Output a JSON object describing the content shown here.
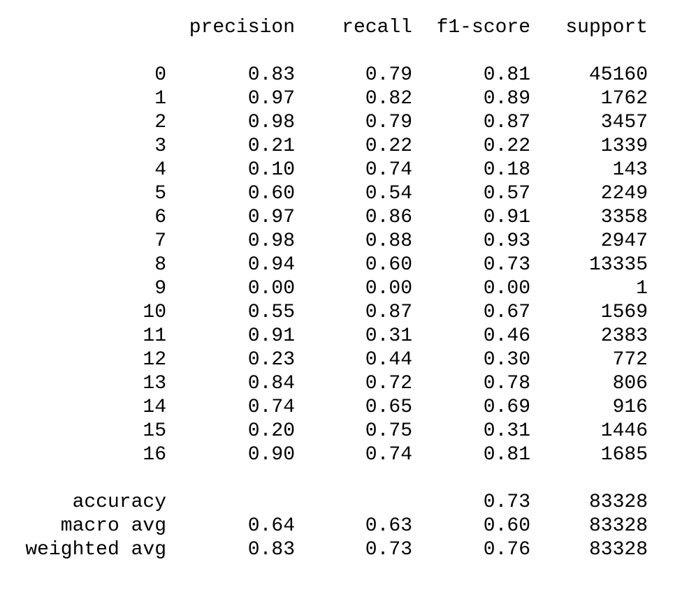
{
  "header": {
    "precision": "precision",
    "recall": "recall",
    "f1": "f1-score",
    "support": "support"
  },
  "classes": [
    {
      "label": "0",
      "precision": "0.83",
      "recall": "0.79",
      "f1": "0.81",
      "support": "45160"
    },
    {
      "label": "1",
      "precision": "0.97",
      "recall": "0.82",
      "f1": "0.89",
      "support": "1762"
    },
    {
      "label": "2",
      "precision": "0.98",
      "recall": "0.79",
      "f1": "0.87",
      "support": "3457"
    },
    {
      "label": "3",
      "precision": "0.21",
      "recall": "0.22",
      "f1": "0.22",
      "support": "1339"
    },
    {
      "label": "4",
      "precision": "0.10",
      "recall": "0.74",
      "f1": "0.18",
      "support": "143"
    },
    {
      "label": "5",
      "precision": "0.60",
      "recall": "0.54",
      "f1": "0.57",
      "support": "2249"
    },
    {
      "label": "6",
      "precision": "0.97",
      "recall": "0.86",
      "f1": "0.91",
      "support": "3358"
    },
    {
      "label": "7",
      "precision": "0.98",
      "recall": "0.88",
      "f1": "0.93",
      "support": "2947"
    },
    {
      "label": "8",
      "precision": "0.94",
      "recall": "0.60",
      "f1": "0.73",
      "support": "13335"
    },
    {
      "label": "9",
      "precision": "0.00",
      "recall": "0.00",
      "f1": "0.00",
      "support": "1"
    },
    {
      "label": "10",
      "precision": "0.55",
      "recall": "0.87",
      "f1": "0.67",
      "support": "1569"
    },
    {
      "label": "11",
      "precision": "0.91",
      "recall": "0.31",
      "f1": "0.46",
      "support": "2383"
    },
    {
      "label": "12",
      "precision": "0.23",
      "recall": "0.44",
      "f1": "0.30",
      "support": "772"
    },
    {
      "label": "13",
      "precision": "0.84",
      "recall": "0.72",
      "f1": "0.78",
      "support": "806"
    },
    {
      "label": "14",
      "precision": "0.74",
      "recall": "0.65",
      "f1": "0.69",
      "support": "916"
    },
    {
      "label": "15",
      "precision": "0.20",
      "recall": "0.75",
      "f1": "0.31",
      "support": "1446"
    },
    {
      "label": "16",
      "precision": "0.90",
      "recall": "0.74",
      "f1": "0.81",
      "support": "1685"
    }
  ],
  "summary": [
    {
      "label": "accuracy",
      "precision": "",
      "recall": "",
      "f1": "0.73",
      "support": "83328"
    },
    {
      "label": "macro avg",
      "precision": "0.64",
      "recall": "0.63",
      "f1": "0.60",
      "support": "83328"
    },
    {
      "label": "weighted avg",
      "precision": "0.83",
      "recall": "0.73",
      "f1": "0.76",
      "support": "83328"
    }
  ]
}
